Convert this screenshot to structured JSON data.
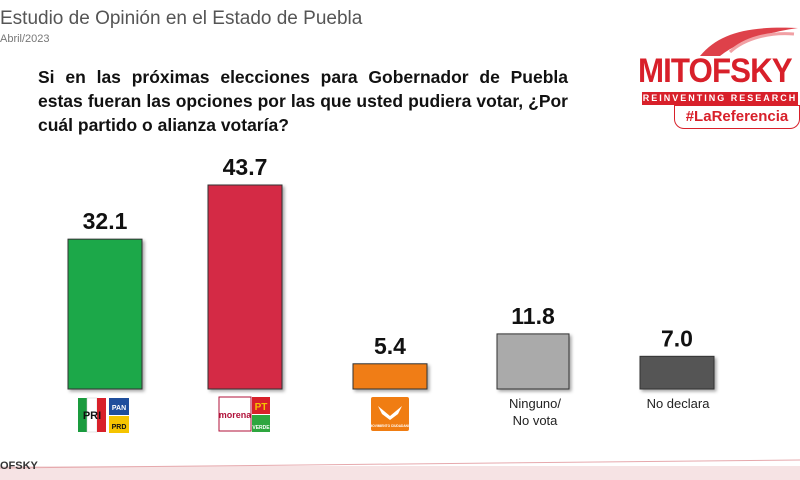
{
  "header": {
    "title": "Estudio de Opinión en el Estado de Puebla",
    "date": "Abril/2023"
  },
  "question": "Si en las próximas elecciones para Gobernador de Puebla estas fueran las opciones por las que usted pudiera votar, ¿Por cuál partido o alianza votaría?",
  "logo": {
    "name": "MITOFSKY",
    "subtitle": "REINVENTING RESEARCH",
    "tagline": "#LaReferencia",
    "brand_color": "#d8202a"
  },
  "footer": {
    "logo_text": "OFSKY"
  },
  "chart_data": {
    "type": "bar",
    "categories": [
      "PRI-PAN-PRD",
      "Morena-PT-Verde",
      "Movimiento Ciudadano",
      "Ninguno/ No vota",
      "No declara"
    ],
    "category_display": [
      "",
      "",
      "",
      "Ninguno/\nNo vota",
      "No declara"
    ],
    "values": [
      32.1,
      43.7,
      5.4,
      11.8,
      7.0
    ],
    "value_labels": [
      "32.1",
      "43.7",
      "5.4",
      "11.8",
      "7.0"
    ],
    "colors": [
      "#1ea84a",
      "#d42a45",
      "#f07d12",
      "#aaaaaa",
      "#555555"
    ],
    "ylim": [
      0,
      50
    ],
    "grid": false,
    "legend": "none",
    "party_logos": {
      "pri": {
        "letters": "PRI",
        "colors": [
          "#1a9b3e",
          "#ffffff",
          "#d8202a"
        ]
      },
      "pan": {
        "letters": "PAN",
        "color": "#1f4e9c"
      },
      "prd": {
        "letters": "PRD",
        "color": "#f5c400"
      },
      "morena": {
        "letters": "morena",
        "color": "#b1123a"
      },
      "pt": {
        "letters": "PT",
        "color": "#d8202a"
      },
      "verde": {
        "letters": "VERDE",
        "color": "#2ea63f"
      },
      "mc": {
        "letters": "MOVIMIENTO CIUDADANO",
        "color": "#f07d12"
      }
    }
  }
}
